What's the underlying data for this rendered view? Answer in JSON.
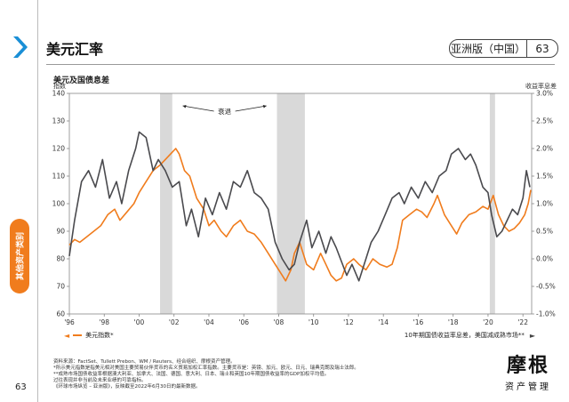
{
  "header": {
    "title": "美元汇率",
    "region": "亚洲版（中国）",
    "page": "63"
  },
  "side_tab": "其他资产类别",
  "page_number": "63",
  "legend": {
    "left": "美元指数*",
    "right": "10年期国债收益率息差，美国减成熟市场**"
  },
  "notes": [
    "资料来源：FactSet、Tullett Prebon、WM / Reuters、经合组织、摩根资产管理。",
    "*所示美元指数是指美元相对美国主要贸易伙伴货币的名义贸易加权汇率指数。主要货币是：英镑、加元、欧元、日元、瑞典克朗及瑞士法郎。",
    "**成熟市场国债收益率根据澳大利亚、加拿大、法国、德国、意大利、日本、瑞士和英国10年期国债收益率的GDP加权平均值。",
    "过往表现并非当前及未来业绩的可靠指标。",
    "《环球市场纵览 – 亚洲版》，反映截至2022年6月30日的最新数据。"
  ],
  "logo": {
    "main": "摩根",
    "sub": "资产管理"
  },
  "colors": {
    "dollar": "#f07c1d",
    "spread": "#4a4a4e",
    "recession": "#d9d9d9",
    "accent": "#1a8fd6"
  },
  "chart_data": {
    "type": "line",
    "title": "美元及国债息差",
    "ylabel_left": "指数",
    "ylabel_right": "收益率息差",
    "recession_label": "衰退",
    "x_range": [
      1996,
      2022.5
    ],
    "x_ticks": [
      "'96",
      "'98",
      "'00",
      "'02",
      "'04",
      "'06",
      "'08",
      "'10",
      "'12",
      "'14",
      "'16",
      "'18",
      "'20",
      "'22"
    ],
    "y_left": {
      "range": [
        60,
        140
      ],
      "ticks": [
        60,
        70,
        80,
        90,
        100,
        110,
        120,
        130,
        140
      ]
    },
    "y_right": {
      "range": [
        -1.0,
        3.0
      ],
      "ticks": [
        "-1.0%",
        "-0.5%",
        "0.0%",
        "0.5%",
        "1.0%",
        "1.5%",
        "2.0%",
        "2.5%",
        "3.0%"
      ]
    },
    "recessions": [
      [
        2001.2,
        2001.9
      ],
      [
        2007.9,
        2009.5
      ],
      [
        2020.1,
        2020.4
      ]
    ],
    "series": [
      {
        "name": "美元指数*",
        "axis": "left",
        "points": [
          [
            1996.0,
            85
          ],
          [
            1996.3,
            87
          ],
          [
            1996.6,
            86
          ],
          [
            1997.0,
            88
          ],
          [
            1997.4,
            90
          ],
          [
            1997.8,
            92
          ],
          [
            1998.2,
            96
          ],
          [
            1998.6,
            98
          ],
          [
            1998.9,
            94
          ],
          [
            1999.3,
            97
          ],
          [
            1999.7,
            100
          ],
          [
            2000.0,
            104
          ],
          [
            2000.4,
            108
          ],
          [
            2000.8,
            112
          ],
          [
            2001.2,
            114
          ],
          [
            2001.5,
            116
          ],
          [
            2001.8,
            118
          ],
          [
            2002.1,
            120
          ],
          [
            2002.3,
            118
          ],
          [
            2002.6,
            112
          ],
          [
            2002.9,
            110
          ],
          [
            2003.3,
            102
          ],
          [
            2003.7,
            98
          ],
          [
            2004.0,
            92
          ],
          [
            2004.3,
            94
          ],
          [
            2004.7,
            90
          ],
          [
            2005.0,
            88
          ],
          [
            2005.4,
            92
          ],
          [
            2005.8,
            94
          ],
          [
            2006.2,
            90
          ],
          [
            2006.6,
            89
          ],
          [
            2007.0,
            86
          ],
          [
            2007.4,
            82
          ],
          [
            2007.8,
            78
          ],
          [
            2008.2,
            74
          ],
          [
            2008.4,
            72
          ],
          [
            2008.7,
            76
          ],
          [
            2008.9,
            82
          ],
          [
            2009.2,
            86
          ],
          [
            2009.6,
            78
          ],
          [
            2010.0,
            76
          ],
          [
            2010.4,
            82
          ],
          [
            2010.7,
            78
          ],
          [
            2011.0,
            74
          ],
          [
            2011.3,
            72
          ],
          [
            2011.6,
            73
          ],
          [
            2011.9,
            78
          ],
          [
            2012.3,
            80
          ],
          [
            2012.6,
            78
          ],
          [
            2013.0,
            76
          ],
          [
            2013.4,
            80
          ],
          [
            2013.8,
            78
          ],
          [
            2014.2,
            77
          ],
          [
            2014.5,
            78
          ],
          [
            2014.8,
            84
          ],
          [
            2015.1,
            94
          ],
          [
            2015.5,
            96
          ],
          [
            2015.9,
            98
          ],
          [
            2016.2,
            97
          ],
          [
            2016.5,
            95
          ],
          [
            2016.9,
            100
          ],
          [
            2017.1,
            103
          ],
          [
            2017.5,
            96
          ],
          [
            2017.9,
            92
          ],
          [
            2018.2,
            89
          ],
          [
            2018.5,
            93
          ],
          [
            2018.9,
            96
          ],
          [
            2019.3,
            97
          ],
          [
            2019.7,
            99
          ],
          [
            2020.0,
            98
          ],
          [
            2020.3,
            103
          ],
          [
            2020.6,
            96
          ],
          [
            2020.9,
            92
          ],
          [
            2021.2,
            90
          ],
          [
            2021.5,
            91
          ],
          [
            2021.8,
            93
          ],
          [
            2022.1,
            96
          ],
          [
            2022.3,
            100
          ],
          [
            2022.45,
            105
          ]
        ]
      },
      {
        "name": "10年期国债收益率息差，美国减成熟市场**",
        "axis": "right",
        "points": [
          [
            1996.0,
            0.05
          ],
          [
            1996.3,
            0.7
          ],
          [
            1996.7,
            1.4
          ],
          [
            1997.1,
            1.6
          ],
          [
            1997.5,
            1.3
          ],
          [
            1997.9,
            1.8
          ],
          [
            1998.3,
            1.1
          ],
          [
            1998.7,
            1.4
          ],
          [
            1999.0,
            1.0
          ],
          [
            1999.4,
            1.6
          ],
          [
            1999.8,
            2.0
          ],
          [
            2000.0,
            2.3
          ],
          [
            2000.4,
            2.2
          ],
          [
            2000.8,
            1.6
          ],
          [
            2001.1,
            1.8
          ],
          [
            2001.5,
            1.6
          ],
          [
            2001.9,
            1.3
          ],
          [
            2002.3,
            1.4
          ],
          [
            2002.7,
            0.6
          ],
          [
            2003.0,
            0.9
          ],
          [
            2003.4,
            0.4
          ],
          [
            2003.8,
            1.1
          ],
          [
            2004.2,
            0.8
          ],
          [
            2004.6,
            1.2
          ],
          [
            2005.0,
            0.9
          ],
          [
            2005.4,
            1.4
          ],
          [
            2005.8,
            1.3
          ],
          [
            2006.2,
            1.6
          ],
          [
            2006.6,
            1.2
          ],
          [
            2007.0,
            1.1
          ],
          [
            2007.4,
            0.9
          ],
          [
            2007.8,
            0.3
          ],
          [
            2008.2,
            0.0
          ],
          [
            2008.6,
            -0.2
          ],
          [
            2008.9,
            -0.1
          ],
          [
            2009.2,
            0.3
          ],
          [
            2009.6,
            0.7
          ],
          [
            2009.9,
            0.2
          ],
          [
            2010.3,
            0.5
          ],
          [
            2010.7,
            0.1
          ],
          [
            2011.0,
            0.4
          ],
          [
            2011.3,
            0.2
          ],
          [
            2011.6,
            -0.05
          ],
          [
            2011.9,
            -0.3
          ],
          [
            2012.2,
            -0.1
          ],
          [
            2012.6,
            -0.4
          ],
          [
            2013.0,
            0.0
          ],
          [
            2013.3,
            0.3
          ],
          [
            2013.7,
            0.5
          ],
          [
            2014.1,
            0.8
          ],
          [
            2014.5,
            1.1
          ],
          [
            2014.9,
            1.2
          ],
          [
            2015.2,
            1.0
          ],
          [
            2015.6,
            1.3
          ],
          [
            2016.0,
            1.1
          ],
          [
            2016.4,
            1.4
          ],
          [
            2016.8,
            1.2
          ],
          [
            2017.2,
            1.5
          ],
          [
            2017.6,
            1.6
          ],
          [
            2017.9,
            1.9
          ],
          [
            2018.3,
            2.0
          ],
          [
            2018.7,
            1.8
          ],
          [
            2019.0,
            1.9
          ],
          [
            2019.3,
            1.7
          ],
          [
            2019.7,
            1.3
          ],
          [
            2020.0,
            1.2
          ],
          [
            2020.2,
            0.8
          ],
          [
            2020.5,
            0.4
          ],
          [
            2020.8,
            0.5
          ],
          [
            2021.1,
            0.7
          ],
          [
            2021.4,
            0.9
          ],
          [
            2021.7,
            0.8
          ],
          [
            2022.0,
            1.1
          ],
          [
            2022.2,
            1.6
          ],
          [
            2022.4,
            1.3
          ]
        ]
      }
    ]
  }
}
